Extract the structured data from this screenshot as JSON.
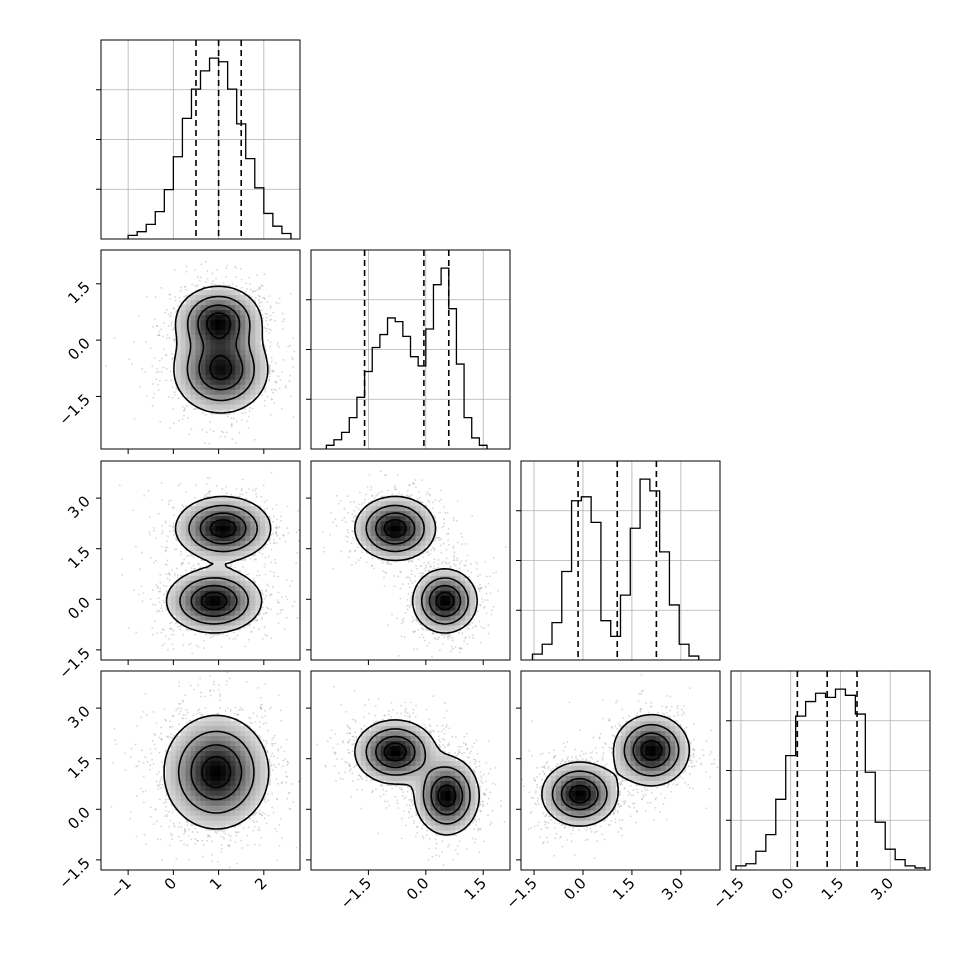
{
  "chart_data": {
    "type": "corner",
    "variables": 4,
    "grid": true,
    "diagonal": [
      {
        "variable": 0,
        "type": "histogram",
        "xlim": [
          -1.6,
          2.8
        ],
        "bins_x": [
          -0.9,
          -0.7,
          -0.5,
          -0.3,
          -0.1,
          0.1,
          0.3,
          0.5,
          0.7,
          0.9,
          1.1,
          1.3,
          1.5,
          1.7,
          1.9,
          2.1,
          2.3,
          2.5
        ],
        "counts": [
          2,
          4,
          8,
          15,
          27,
          45,
          66,
          82,
          92,
          99,
          97,
          82,
          63,
          44,
          28,
          14,
          7,
          3
        ],
        "quantiles": [
          0.5,
          1.0,
          1.5
        ]
      },
      {
        "variable": 1,
        "type": "histogram",
        "xlim": [
          -3.0,
          2.2
        ],
        "bins_x": [
          -2.5,
          -2.3,
          -2.1,
          -1.9,
          -1.7,
          -1.5,
          -1.3,
          -1.1,
          -0.9,
          -0.7,
          -0.5,
          -0.3,
          -0.1,
          0.1,
          0.3,
          0.5,
          0.7,
          0.9,
          1.1,
          1.3,
          1.5
        ],
        "counts": [
          2,
          5,
          9,
          17,
          28,
          42,
          55,
          62,
          71,
          69,
          61,
          50,
          45,
          65,
          89,
          98,
          76,
          46,
          17,
          6,
          2
        ],
        "quantiles": [
          -1.6,
          -0.05,
          0.6
        ]
      },
      {
        "variable": 2,
        "type": "histogram",
        "xlim": [
          -1.9,
          4.2
        ],
        "bins_x": [
          -1.4,
          -1.1,
          -0.8,
          -0.5,
          -0.2,
          0.1,
          0.4,
          0.7,
          1.0,
          1.3,
          1.6,
          1.9,
          2.2,
          2.5,
          2.8,
          3.1,
          3.4
        ],
        "counts": [
          3,
          8,
          19,
          45,
          81,
          83,
          70,
          20,
          12,
          33,
          67,
          92,
          86,
          55,
          28,
          8,
          2
        ],
        "quantiles": [
          -0.15,
          1.05,
          2.25
        ]
      },
      {
        "variable": 3,
        "type": "histogram",
        "xlim": [
          -1.8,
          4.2
        ],
        "bins_x": [
          -1.5,
          -1.2,
          -0.9,
          -0.6,
          -0.3,
          0.0,
          0.3,
          0.6,
          0.9,
          1.2,
          1.5,
          1.8,
          2.1,
          2.4,
          2.7,
          3.0,
          3.3,
          3.6,
          3.9
        ],
        "counts": [
          2,
          3,
          9,
          17,
          34,
          55,
          74,
          81,
          85,
          83,
          87,
          84,
          75,
          47,
          23,
          10,
          5,
          2,
          1
        ],
        "quantiles": [
          0.2,
          1.1,
          2.0
        ]
      }
    ],
    "pairs": [
      {
        "row": 1,
        "col": 0,
        "xlim": [
          -1.6,
          2.8
        ],
        "ylim": [
          -2.9,
          2.4
        ],
        "components": [
          {
            "x": 1.0,
            "y": 0.5,
            "sx": 0.45,
            "sy": 0.45
          },
          {
            "x": 1.05,
            "y": -0.8,
            "sx": 0.5,
            "sy": 0.55
          }
        ]
      },
      {
        "row": 2,
        "col": 0,
        "xlim": [
          -1.6,
          2.8
        ],
        "ylim": [
          -1.8,
          4.1
        ],
        "components": [
          {
            "x": 1.1,
            "y": 2.1,
            "sx": 0.5,
            "sy": 0.45
          },
          {
            "x": 0.9,
            "y": -0.05,
            "sx": 0.5,
            "sy": 0.45
          }
        ]
      },
      {
        "row": 2,
        "col": 1,
        "xlim": [
          -3.0,
          2.2
        ],
        "ylim": [
          -1.8,
          4.1
        ],
        "components": [
          {
            "x": -0.8,
            "y": 2.1,
            "sx": 0.5,
            "sy": 0.45
          },
          {
            "x": 0.5,
            "y": -0.05,
            "sx": 0.4,
            "sy": 0.45
          }
        ]
      },
      {
        "row": 3,
        "col": 0,
        "xlim": [
          -1.6,
          2.8
        ],
        "ylim": [
          -1.8,
          4.1
        ],
        "components": [
          {
            "x": 0.95,
            "y": 1.1,
            "sx": 0.55,
            "sy": 0.8
          }
        ]
      },
      {
        "row": 3,
        "col": 1,
        "xlim": [
          -3.0,
          2.2
        ],
        "ylim": [
          -1.8,
          4.1
        ],
        "components": [
          {
            "x": -0.8,
            "y": 1.7,
            "sx": 0.5,
            "sy": 0.45
          },
          {
            "x": 0.55,
            "y": 0.4,
            "sx": 0.4,
            "sy": 0.55
          }
        ]
      },
      {
        "row": 3,
        "col": 2,
        "xlim": [
          -1.9,
          4.2
        ],
        "ylim": [
          -1.8,
          4.1
        ],
        "components": [
          {
            "x": -0.1,
            "y": 0.45,
            "sx": 0.55,
            "sy": 0.45
          },
          {
            "x": 2.1,
            "y": 1.75,
            "sx": 0.55,
            "sy": 0.5
          }
        ]
      }
    ],
    "tick_labels": {
      "col0_x": [
        -1,
        0,
        1,
        2
      ],
      "col1_x": [
        -1.5,
        0.0,
        1.5
      ],
      "col2_x": [
        -1.5,
        0.0,
        1.5,
        3.0
      ],
      "col3_x": [
        -1.5,
        0.0,
        1.5,
        3.0
      ],
      "row1_y": [
        1.5,
        0.0,
        -1.5
      ],
      "row2_y": [
        3.0,
        1.5,
        0.0,
        -1.5
      ],
      "row3_y": [
        3.0,
        1.5,
        0.0,
        -1.5
      ]
    },
    "colors": {
      "scatter": "#8a8a8a",
      "density": "#000000"
    }
  }
}
